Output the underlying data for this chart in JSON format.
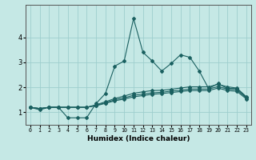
{
  "xlabel": "Humidex (Indice chaleur)",
  "background_color": "#c5e8e5",
  "grid_color": "#9ecece",
  "line_color": "#1a6060",
  "xlim": [
    -0.5,
    23.5
  ],
  "ylim": [
    0.5,
    5.3
  ],
  "yticks": [
    1,
    2,
    3,
    4
  ],
  "xtick_labels": [
    "0",
    "1",
    "2",
    "3",
    "4",
    "5",
    "6",
    "7",
    "8",
    "9",
    "10",
    "11",
    "12",
    "13",
    "14",
    "15",
    "16",
    "17",
    "18",
    "19",
    "20",
    "21",
    "22",
    "23"
  ],
  "series": [
    [
      1.2,
      1.1,
      1.2,
      1.2,
      0.78,
      0.78,
      0.78,
      1.35,
      1.75,
      2.85,
      3.05,
      4.75,
      3.4,
      3.05,
      2.65,
      2.95,
      3.3,
      3.2,
      2.65,
      1.95,
      2.15,
      1.95,
      1.95,
      1.6
    ],
    [
      1.2,
      1.15,
      1.2,
      1.2,
      1.2,
      1.2,
      1.2,
      1.3,
      1.42,
      1.55,
      1.65,
      1.76,
      1.82,
      1.87,
      1.88,
      1.92,
      1.97,
      2.02,
      2.02,
      2.02,
      2.12,
      2.02,
      1.97,
      1.63
    ],
    [
      1.2,
      1.15,
      1.2,
      1.2,
      1.2,
      1.2,
      1.2,
      1.28,
      1.38,
      1.5,
      1.58,
      1.68,
      1.73,
      1.78,
      1.8,
      1.85,
      1.88,
      1.93,
      1.93,
      1.93,
      2.03,
      1.93,
      1.9,
      1.58
    ],
    [
      1.2,
      1.15,
      1.2,
      1.2,
      1.2,
      1.2,
      1.2,
      1.26,
      1.36,
      1.46,
      1.53,
      1.62,
      1.67,
      1.72,
      1.75,
      1.79,
      1.83,
      1.87,
      1.87,
      1.87,
      1.97,
      1.87,
      1.84,
      1.54
    ]
  ]
}
